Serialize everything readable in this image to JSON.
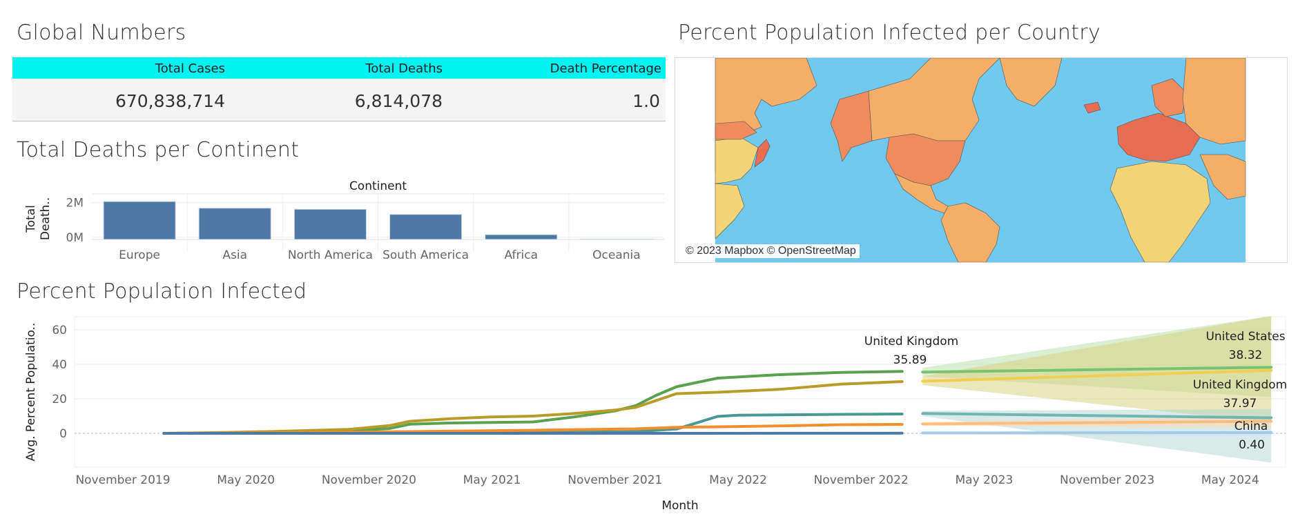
{
  "global_numbers": {
    "title": "Global Numbers",
    "headers": [
      "Total Cases",
      "Total Deaths",
      "Death Percentage"
    ],
    "values": [
      "670,838,714",
      "6,814,078",
      "1.0"
    ],
    "header_color": "#00f2f2"
  },
  "map": {
    "title": "Percent Population Infected per Country",
    "attribution": "© 2023 Mapbox © OpenStreetMap",
    "ocean_color": "#70c8ef"
  },
  "continent_chart": {
    "title": "Total Deaths per Continent"
  },
  "infected_chart": {
    "title": "Percent Population Infected"
  },
  "chart_data": [
    {
      "type": "bar",
      "column_header": "Continent",
      "categories": [
        "Europe",
        "Asia",
        "North America",
        "South America",
        "Africa",
        "Oceania"
      ],
      "values": [
        2060000,
        1700000,
        1640000,
        1360000,
        260000,
        25000
      ],
      "ylabel": "Total Death..",
      "y_ticks": [
        "0M",
        "2M"
      ],
      "ylim": [
        0,
        2400000
      ],
      "color": "#4e79a7",
      "grid": true
    },
    {
      "type": "line",
      "xlabel": "Month",
      "ylabel": "Avg. Percent Populatio..",
      "x_ticks": [
        "November 2019",
        "May 2020",
        "November 2020",
        "May 2021",
        "November 2021",
        "May 2022",
        "November 2022",
        "May 2023",
        "November 2023",
        "May 2024"
      ],
      "y_ticks": [
        "0",
        "20",
        "40",
        "60"
      ],
      "ylim": [
        -17,
        68
      ],
      "grid": true,
      "series": [
        {
          "name": "United Kingdom",
          "color": "#59a14f",
          "x": [
            "2020-01",
            "2020-04",
            "2020-07",
            "2020-10",
            "2020-12",
            "2021-01",
            "2021-03",
            "2021-05",
            "2021-07",
            "2021-09",
            "2021-11",
            "2021-12",
            "2022-01",
            "2022-02",
            "2022-04",
            "2022-07",
            "2022-10",
            "2023-01"
          ],
          "y": [
            0,
            0.2,
            0.6,
            1.5,
            2.8,
            5.3,
            6.0,
            6.3,
            6.6,
            9.5,
            13,
            16,
            22,
            27,
            32,
            34,
            35.3,
            35.89
          ]
        },
        {
          "name": "United States",
          "color": "#b89c2a",
          "x": [
            "2020-01",
            "2020-04",
            "2020-07",
            "2020-10",
            "2020-12",
            "2021-01",
            "2021-03",
            "2021-05",
            "2021-07",
            "2021-09",
            "2021-11",
            "2021-12",
            "2022-01",
            "2022-02",
            "2022-04",
            "2022-07",
            "2022-10",
            "2023-01"
          ],
          "y": [
            0,
            0.5,
            1.3,
            2.3,
            4.5,
            7.0,
            8.5,
            9.5,
            10,
            11.5,
            13.5,
            15,
            19,
            23,
            23.8,
            25.5,
            28.5,
            30
          ]
        },
        {
          "name": "",
          "color": "#499894",
          "x": [
            "2020-01",
            "2021-01",
            "2021-06",
            "2021-12",
            "2022-02",
            "2022-04",
            "2022-05",
            "2022-07",
            "2022-10",
            "2023-01"
          ],
          "y": [
            0,
            0,
            0.3,
            1.0,
            2.5,
            9.8,
            10.5,
            10.7,
            11.0,
            11.2
          ]
        },
        {
          "name": "",
          "color": "#f28e2b",
          "x": [
            "2020-01",
            "2020-07",
            "2021-01",
            "2021-07",
            "2021-12",
            "2022-02",
            "2022-07",
            "2022-10",
            "2023-01"
          ],
          "y": [
            0,
            0.3,
            1.0,
            1.8,
            2.6,
            3.5,
            4.3,
            5.0,
            5.2
          ]
        },
        {
          "name": "China",
          "color": "#4e79a7",
          "x": [
            "2020-01",
            "2020-07",
            "2021-01",
            "2021-07",
            "2022-01",
            "2022-07",
            "2023-01"
          ],
          "y": [
            0,
            0,
            0,
            0,
            0,
            0.05,
            0.1
          ]
        }
      ],
      "forecast": {
        "x_start": "2023-02",
        "x_end": "2024-07",
        "series": [
          {
            "name": "United States",
            "color": "#79c26f",
            "y": [
              35.5,
              38.32
            ],
            "band": [
              [
                33,
                38
              ],
              [
                21,
                68
              ]
            ],
            "band_color": "#b5dfa6"
          },
          {
            "name": "",
            "color": "#f2cf52",
            "y": [
              30.2,
              36.5
            ],
            "band": [
              [
                28,
                33
              ],
              [
                6,
                68
              ]
            ],
            "band_color": "#d8cf7b"
          },
          {
            "name": "United Kingdom",
            "color": "#6fb5b0",
            "y": [
              11.5,
              9.0
            ],
            "band": [
              [
                10,
                13
              ],
              [
                -17,
                14
              ]
            ],
            "band_color": "#b3d6d3"
          },
          {
            "name": "",
            "color": "#ffbe7d",
            "y": [
              5.4,
              7.0
            ],
            "band": [
              [
                4.5,
                6.5
              ],
              [
                3,
                10
              ]
            ],
            "band_color": "#ffd9ad"
          },
          {
            "name": "China",
            "color": "#a0cbe8",
            "y": [
              0.2,
              0.4
            ],
            "band": [
              [
                0,
                0.5
              ],
              [
                -3,
                3
              ]
            ],
            "band_color": "#d6e7f3"
          }
        ]
      },
      "annotations": [
        {
          "name": "United Kingdom",
          "value": "35.89"
        },
        {
          "name": "United States",
          "value": "38.32"
        },
        {
          "name": "United Kingdom",
          "value": "37.97"
        },
        {
          "name": "China",
          "value": "0.40"
        }
      ]
    }
  ]
}
